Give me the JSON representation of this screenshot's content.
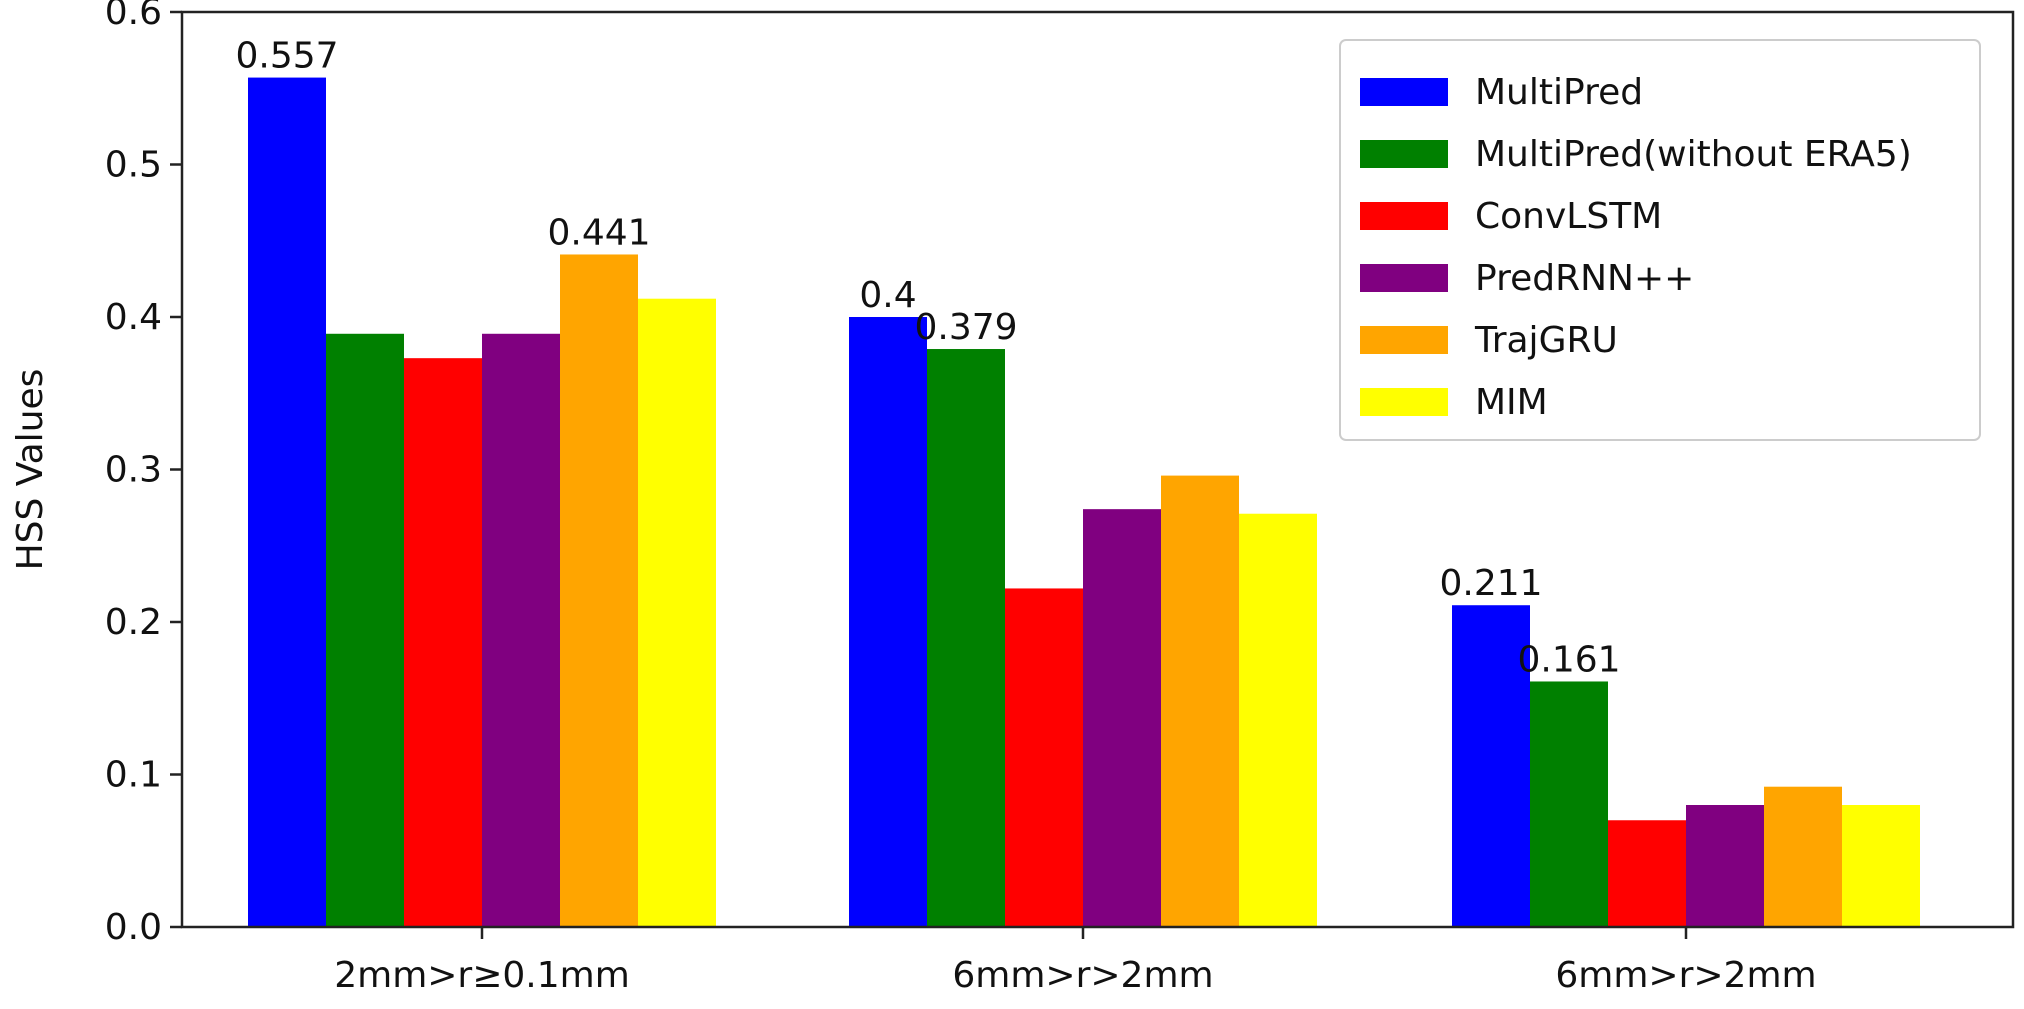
{
  "chart_data": {
    "type": "bar",
    "title": "",
    "xlabel": "",
    "ylabel": "HSS Values",
    "ylim": [
      0,
      0.6
    ],
    "yticks": [
      "0.0",
      "0.1",
      "0.2",
      "0.3",
      "0.4",
      "0.5",
      "0.6"
    ],
    "grid": false,
    "legend_position": "top-right",
    "categories": [
      "2mm>r≥0.1mm",
      "6mm>r>2mm",
      "6mm>r>2mm"
    ],
    "series": [
      {
        "name": "MultiPred",
        "color": "#0000ff",
        "values": [
          0.557,
          0.4,
          0.211
        ]
      },
      {
        "name": "MultiPred(without ERA5)",
        "color": "#008000",
        "values": [
          0.389,
          0.379,
          0.161
        ]
      },
      {
        "name": "ConvLSTM",
        "color": "#ff0000",
        "values": [
          0.373,
          0.222,
          0.07
        ]
      },
      {
        "name": "PredRNN++",
        "color": "#800080",
        "values": [
          0.389,
          0.274,
          0.08
        ]
      },
      {
        "name": "TrajGRU",
        "color": "#ffa500",
        "values": [
          0.441,
          0.296,
          0.092
        ]
      },
      {
        "name": "MIM",
        "color": "#ffff00",
        "values": [
          0.412,
          0.271,
          0.08
        ]
      }
    ],
    "annotations": [
      {
        "category_index": 0,
        "series_index": 0,
        "text": "0.557"
      },
      {
        "category_index": 0,
        "series_index": 4,
        "text": "0.441"
      },
      {
        "category_index": 1,
        "series_index": 0,
        "text": "0.4"
      },
      {
        "category_index": 1,
        "series_index": 1,
        "text": "0.379"
      },
      {
        "category_index": 2,
        "series_index": 0,
        "text": "0.211"
      },
      {
        "category_index": 2,
        "series_index": 1,
        "text": "0.161"
      }
    ]
  }
}
